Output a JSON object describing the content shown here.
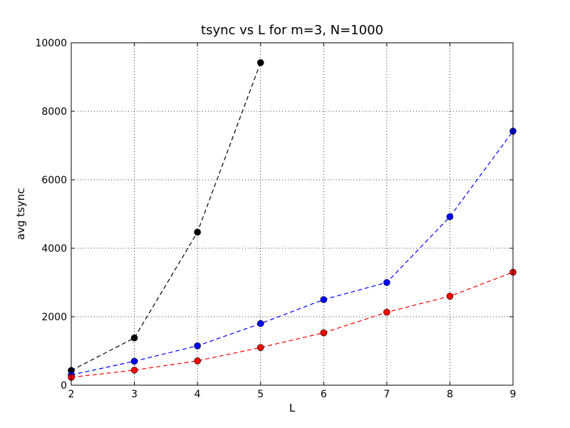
{
  "chart_data": {
    "type": "line",
    "title": "tsync vs L for m=3, N=1000",
    "xlabel": "L",
    "ylabel": "avg tsync",
    "xlim": [
      2,
      9
    ],
    "ylim": [
      0,
      10000
    ],
    "xticks": [
      "2",
      "3",
      "4",
      "5",
      "6",
      "7",
      "8",
      "9"
    ],
    "yticks": [
      "0",
      "2000",
      "4000",
      "6000",
      "8000",
      "10000"
    ],
    "xtick_values": [
      2,
      3,
      4,
      5,
      6,
      7,
      8,
      9
    ],
    "ytick_values": [
      0,
      2000,
      4000,
      6000,
      8000,
      10000
    ],
    "grid": true,
    "series": [
      {
        "color": "#000000",
        "x": [
          2,
          3,
          4,
          5
        ],
        "y": [
          430,
          1380,
          4470,
          9420
        ]
      },
      {
        "color": "#0000ff",
        "x": [
          2,
          3,
          4,
          5,
          6,
          7,
          8,
          9
        ],
        "y": [
          300,
          700,
          1150,
          1800,
          2500,
          3000,
          4920,
          7420
        ]
      },
      {
        "color": "#ff0000",
        "x": [
          2,
          3,
          4,
          5,
          6,
          7,
          8,
          9
        ],
        "y": [
          230,
          440,
          710,
          1100,
          1530,
          2130,
          2600,
          3300
        ]
      }
    ]
  }
}
